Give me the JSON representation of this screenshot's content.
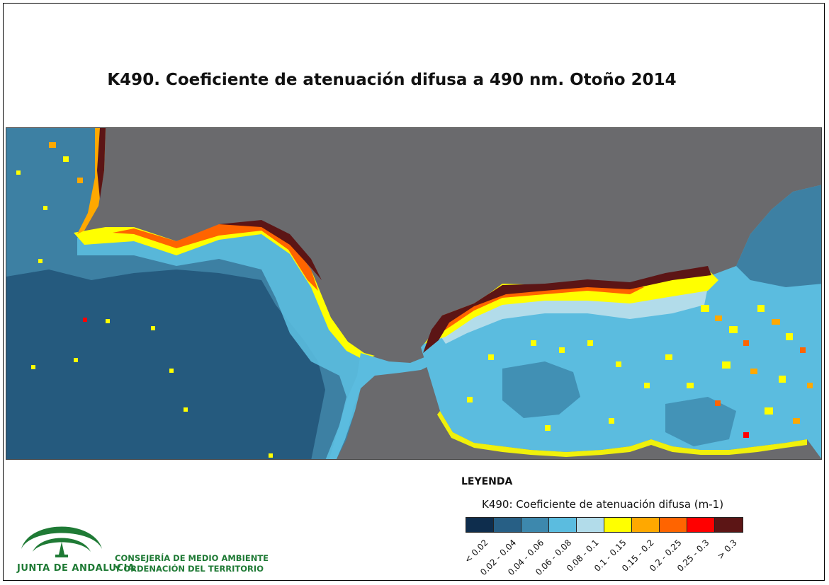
{
  "title": "K490. Coeficiente de atenuación difusa a 490 nm. Otoño 2014",
  "legend": {
    "heading": "LEYENDA",
    "variable": "K490: Coeficiente de atenuación difusa (m-1)",
    "classes": [
      {
        "label": "< 0.02",
        "color": "#0e2d4d"
      },
      {
        "label": "0.02 - 0.04",
        "color": "#275f85"
      },
      {
        "label": "0.04 - 0.06",
        "color": "#3d88ad"
      },
      {
        "label": "0.06 - 0.08",
        "color": "#5bbcdf"
      },
      {
        "label": "0.08 - 0.1",
        "color": "#b2dcea"
      },
      {
        "label": "0.1 - 0.15",
        "color": "#ffff00"
      },
      {
        "label": "0.15 - 0.2",
        "color": "#ffa800"
      },
      {
        "label": "0.2 - 0.25",
        "color": "#ff6400"
      },
      {
        "label": "0.25 - 0.3",
        "color": "#ff0000"
      },
      {
        "label": "> 0.3",
        "color": "#5c1515"
      }
    ]
  },
  "colors": {
    "land": "#6a6a6d",
    "deep_sea": "#255a7e",
    "open_sea": "#3d80a3",
    "shelf_sea": "#5bbcdf",
    "brand_green": "#1f7a35"
  },
  "logo": {
    "organization": "JUNTA DE ANDALUCIA",
    "department_line1": "CONSEJERÍA DE MEDIO AMBIENTE",
    "department_line2": "Y ORDENACIÓN DEL TERRITORIO"
  }
}
